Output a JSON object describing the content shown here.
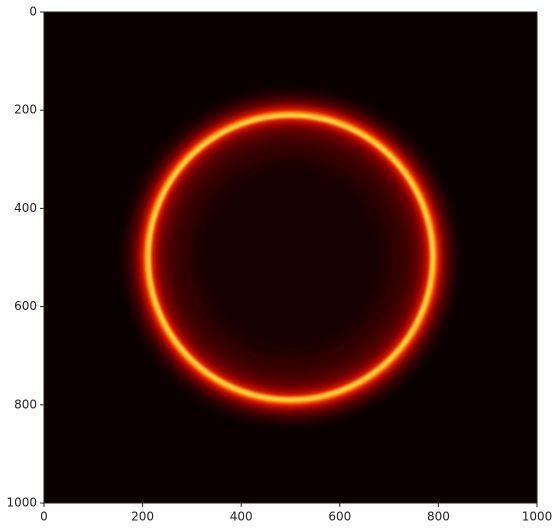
{
  "chart_data": {
    "type": "image",
    "cmap": "hot",
    "center": [
      500,
      500
    ],
    "radius": 290,
    "xlim": [
      0,
      1000
    ],
    "ylim": [
      1000,
      0
    ],
    "xticks": [
      0,
      200,
      400,
      600,
      800,
      1000
    ],
    "yticks": [
      0,
      200,
      400,
      600,
      800,
      1000
    ]
  }
}
